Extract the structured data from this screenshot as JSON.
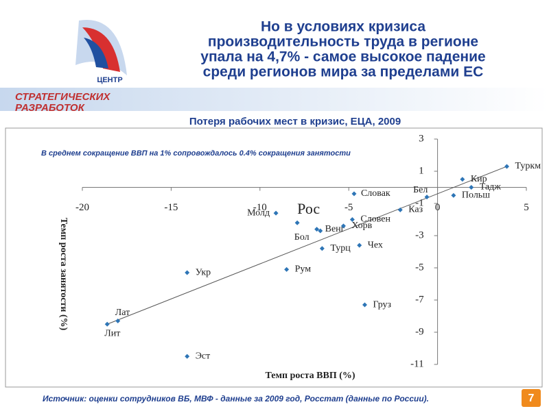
{
  "header": {
    "logo_top": "ЦЕНТР",
    "logo_line1": "СТРАТЕГИЧЕСКИХ",
    "logo_line2": "РАЗРАБОТОК",
    "title_lines": [
      "Но в условиях кризиса",
      "производительность труда в регионе",
      "упала на 4,7%  - самое высокое падение",
      "среди регионов мира за пределами ЕС"
    ]
  },
  "chart_data": {
    "type": "scatter",
    "title": "Потеря рабочих мест в кризис, ЕЦА, 2009",
    "annotation": "В среднем сокращение ВВП на 1% сопровождалось 0.4% сокращения занятости",
    "x_label": "Темп роста ВВП (%)",
    "y_label": "Темп роста занятости (%)",
    "xlim": [
      -20,
      5
    ],
    "xticks": [
      -20,
      -15,
      -10,
      -5,
      0,
      5
    ],
    "ylim": [
      -11,
      3
    ],
    "yticks": [
      3,
      1,
      -1,
      -3,
      -5,
      -7,
      -9,
      -11
    ],
    "color": "#2e75b6",
    "labels": [
      "Туркм",
      "Кир",
      "Тадж",
      "Польш",
      "Бел",
      "Словак",
      "Каз",
      "Словен",
      "Рос",
      "Молд",
      "Венг",
      "Бол",
      "Хорв",
      "Чех",
      "Турц",
      "Рум",
      "Укр",
      "Груз",
      "Лат",
      "Лит",
      "Эст"
    ],
    "x": [
      3.9,
      1.4,
      1.9,
      0.9,
      -0.6,
      -4.7,
      -2.1,
      -4.8,
      -7.9,
      -9.1,
      -6.8,
      -6.6,
      -5.3,
      -4.4,
      -6.5,
      -8.5,
      -14.1,
      -4.1,
      -18.0,
      -18.6,
      -14.1
    ],
    "y": [
      1.3,
      0.5,
      0.0,
      -0.5,
      -0.6,
      -0.4,
      -1.4,
      -2.0,
      -2.2,
      -1.6,
      -2.6,
      -2.7,
      -2.4,
      -3.6,
      -3.8,
      -5.1,
      -5.3,
      -7.3,
      -8.3,
      -8.5,
      -10.5
    ],
    "trend": {
      "x": [
        -18.6,
        3.9
      ],
      "y": [
        -8.5,
        1.3
      ]
    }
  },
  "footer": {
    "source": "Источник: оценки сотрудников ВБ, МВФ - данные за 2009 год, Росстат (данные по России).",
    "page": "7"
  }
}
